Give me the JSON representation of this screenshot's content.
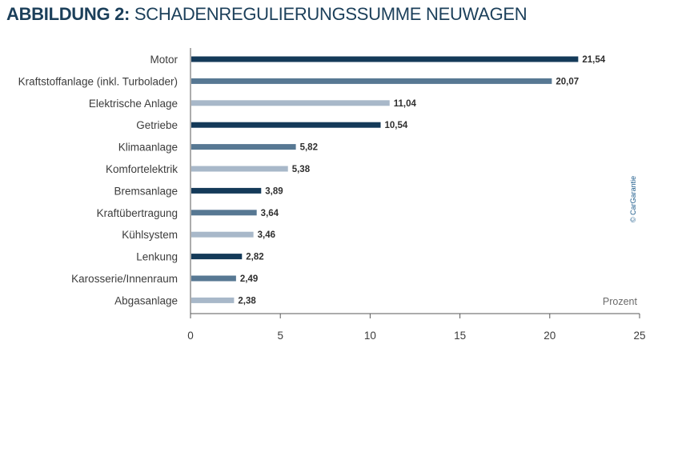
{
  "header": {
    "title_bold": "ABBILDUNG 2:",
    "title_rest": "SCHADENREGULIERUNGSSUMME NEUWAGEN"
  },
  "copyright": "© CarGarantie",
  "colors": {
    "dark": "#143a59",
    "mid": "#577893",
    "light": "#a8b8c9",
    "axis": "#5a5a5a"
  },
  "chart_data": {
    "type": "bar",
    "orientation": "horizontal",
    "title": "SCHADENREGULIERUNGSSUMME NEUWAGEN",
    "xlabel": "Prozent",
    "ylabel": "",
    "xlim": [
      0,
      25
    ],
    "xticks": [
      0,
      5,
      10,
      15,
      20,
      25
    ],
    "grid": false,
    "categories": [
      "Motor",
      "Kraftstoffanlage (inkl. Turbolader)",
      "Elektrische Anlage",
      "Getriebe",
      "Klimaanlage",
      "Komfortelektrik",
      "Bremsanlage",
      "Kraftübertragung",
      "Kühlsystem",
      "Lenkung",
      "Karosserie/Innenraum",
      "Abgasanlage"
    ],
    "values": [
      21.54,
      20.07,
      11.04,
      10.54,
      5.82,
      5.38,
      3.89,
      3.64,
      3.46,
      2.82,
      2.49,
      2.38
    ],
    "value_labels": [
      "21,54",
      "20,07",
      "11,04",
      "10,54",
      "5,82",
      "5,38",
      "3,89",
      "3,64",
      "3,46",
      "2,82",
      "2,49",
      "2,38"
    ],
    "bar_shades": [
      "dark",
      "mid",
      "light",
      "dark",
      "mid",
      "light",
      "dark",
      "mid",
      "light",
      "dark",
      "mid",
      "light"
    ]
  }
}
